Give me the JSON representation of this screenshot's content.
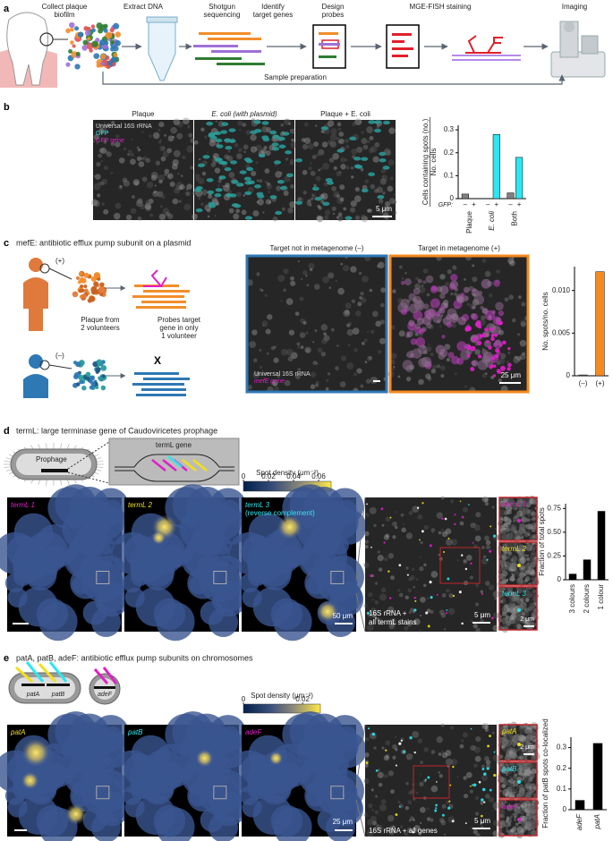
{
  "panels": {
    "a": {
      "label": "a",
      "steps": [
        [
          "Collect plaque",
          "biofilm"
        ],
        [
          "Extract DNA"
        ],
        [
          "Shotgun",
          "sequencing"
        ],
        [
          "Identify",
          "target genes"
        ],
        [
          "Design",
          "probes"
        ],
        [
          "MGE-FISH staining"
        ],
        [
          "Imaging"
        ]
      ],
      "sample_preparation": "Sample preparation"
    },
    "b": {
      "label": "b",
      "columns": [
        "Plaque",
        "E. coli (with plasmid)",
        "Plaque + E. coli"
      ],
      "legend": [
        "Universal 16S rRNA",
        "GFP",
        "GFP gene"
      ],
      "scale_bar": "5 μm"
    },
    "c": {
      "label": "c",
      "title": "mefE: antibiotic efflux pump subunit on a plasmid",
      "donor_pos": "(+)",
      "donor_neg": "(–)",
      "plaque_note": [
        "Plaque from",
        "2 volunteers"
      ],
      "probe_note": [
        "Probes target",
        "gene in only",
        "1 volunteer"
      ],
      "cross": "X",
      "columns": [
        "Target not in metagenome (–)",
        "Target in metagenome (+)"
      ],
      "legend": [
        "Universal 16S rRNA",
        "mefE gene"
      ],
      "scale_bar": "25 μm"
    },
    "d": {
      "label": "d",
      "title": "termL: large terminase gene of Caudoviricetes prophage",
      "prophage": "Prophage",
      "gene": "termL gene",
      "colorbar": {
        "label": "Spot density (μm⁻²)",
        "lim": [
          0,
          0.07
        ],
        "ticks": [
          0,
          0.02,
          0.04,
          0.06
        ]
      },
      "image_labels": [
        "termL 1",
        "termL 2",
        "termL 3"
      ],
      "image_note": "(reverse complement)",
      "scale_bar": "50 μm",
      "zoom_caption": [
        "16S rRNA +",
        "all termL stains"
      ],
      "zoom_scale_bar": "5 μm",
      "insets": [
        "termL 1",
        "termL 2",
        "termL 3"
      ],
      "inset_scale_bar": "2 μm"
    },
    "e": {
      "label": "e",
      "title": "patA, patB, adeF: antibiotic efflux pump subunits on chromosomes",
      "genes": [
        "patA",
        "patB",
        "adeF"
      ],
      "colorbar": {
        "label": "Spot density (μm⁻²)",
        "lim": [
          0,
          0.026
        ],
        "ticks": [
          0,
          0.02
        ]
      },
      "image_labels": [
        "patA",
        "patB",
        "adeF"
      ],
      "scale_bar": "25 μm",
      "zoom_caption": "16S rRNA + all genes",
      "zoom_scale_bar": "5 μm",
      "insets": [
        "patA",
        "patB",
        "adeF"
      ],
      "inset_scale_bar": "2 μm"
    }
  },
  "chart_data": [
    {
      "type": "bar",
      "ylabel": [
        "Cells containing spots (no.)",
        "No. cells"
      ],
      "categories": [
        "Plaque",
        "E. coli",
        "Both"
      ],
      "series_label": "GFP:",
      "series": [
        {
          "name": "–",
          "color": "#808080",
          "values": [
            0.02,
            0,
            0.025
          ]
        },
        {
          "name": "+",
          "color": "#2ee6f0",
          "values": [
            0,
            0.28,
            0.18
          ]
        }
      ],
      "ylim": [
        0,
        0.32
      ],
      "yticks": [
        0,
        0.1,
        0.2,
        0.3
      ]
    },
    {
      "type": "bar",
      "ylabel": [
        "No. spots/no. cells"
      ],
      "categories": [
        "(–)",
        "(+)"
      ],
      "values": [
        0.0001,
        0.0122
      ],
      "colors": [
        "#808080",
        "#f58a1f"
      ],
      "ylim": [
        0,
        0.0128
      ],
      "yticks": [
        0,
        0.005,
        {
          "value": 0.01,
          "label": "0.010"
        }
      ]
    },
    {
      "type": "bar",
      "ylabel": [
        "Fraction of total spots"
      ],
      "categories": [
        "3 colours",
        "2 colours",
        "1 colour"
      ],
      "values": [
        0.06,
        0.21,
        0.72
      ],
      "color": "#000000",
      "ylim": [
        0,
        0.8
      ],
      "yticks": [
        0,
        0.25,
        {
          "value": 0.5,
          "label": "0.50"
        },
        0.75
      ]
    },
    {
      "type": "bar",
      "ylabel": [
        "Fraction of patB spots co-localized"
      ],
      "categories": [
        "adeF",
        "patA"
      ],
      "values": [
        0.045,
        0.32
      ],
      "color": "#000000",
      "ylim": [
        0,
        0.35
      ],
      "yticks": [
        0,
        0.1,
        0.2,
        0.3
      ]
    }
  ]
}
